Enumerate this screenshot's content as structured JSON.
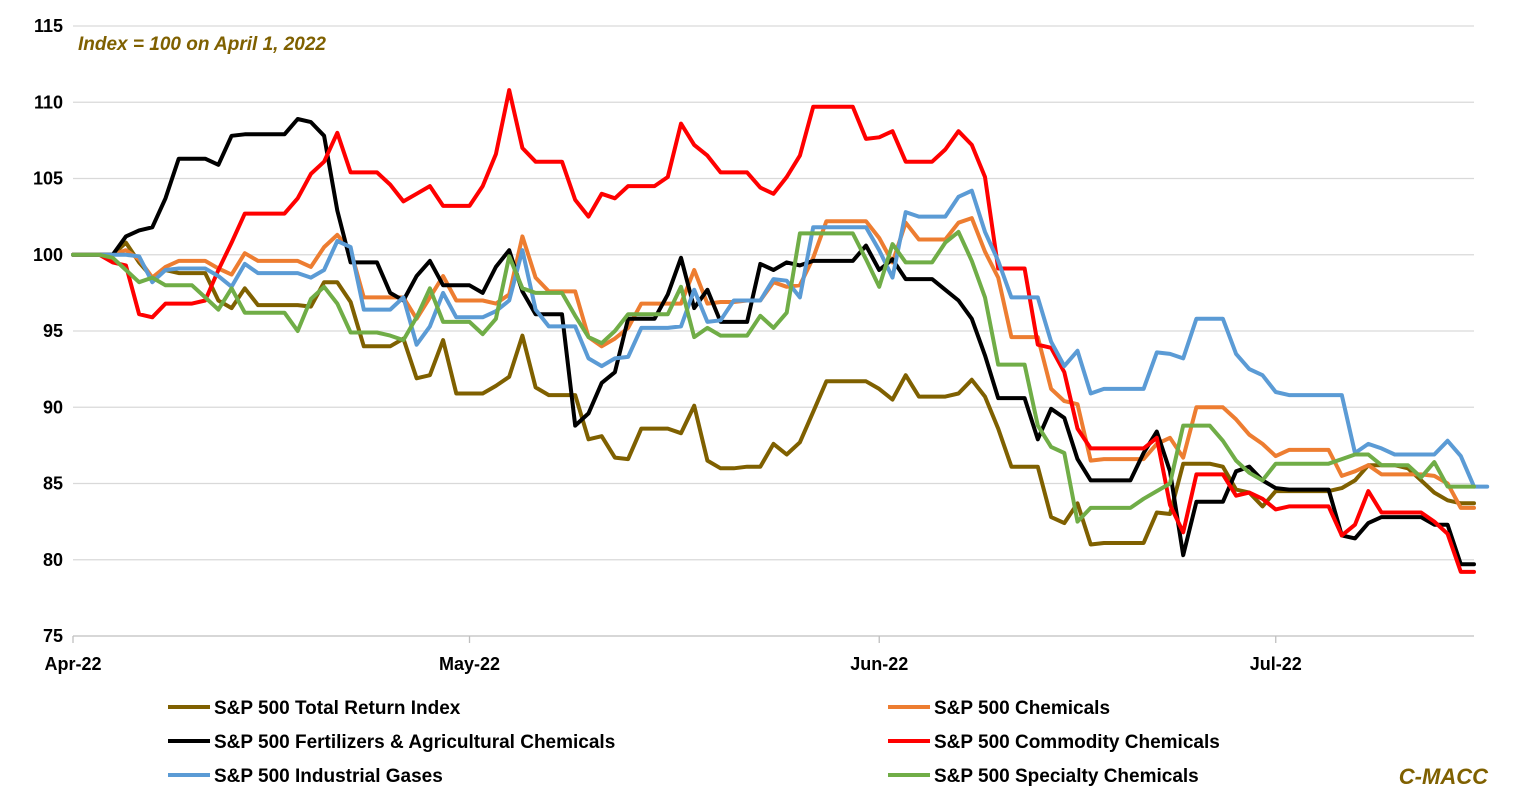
{
  "chart_data": {
    "type": "line",
    "annotation": "Index = 100 on April 1, 2022",
    "brand": "C-MACC",
    "ylim": [
      75,
      115
    ],
    "yticks": [
      75,
      80,
      85,
      90,
      95,
      100,
      105,
      110,
      115
    ],
    "xlim": [
      0,
      106
    ],
    "xticks": [
      {
        "label": "Apr-22",
        "x": 0
      },
      {
        "label": "May-22",
        "x": 30
      },
      {
        "label": "Jun-22",
        "x": 61
      },
      {
        "label": "Jul-22",
        "x": 91
      }
    ],
    "grid": true,
    "legend_position": "bottom",
    "series": [
      {
        "name": "S&P 500 Total Return Index",
        "color": "#7F6000",
        "values": [
          100,
          100,
          100,
          100,
          100.8,
          99.5,
          98.5,
          99,
          98.8,
          98.8,
          98.8,
          97,
          96.5,
          97.8,
          96.7,
          96.7,
          96.7,
          96.7,
          96.6,
          98.2,
          98.2,
          96.9,
          94,
          94,
          94,
          94.5,
          91.9,
          92.1,
          94.4,
          90.9,
          90.9,
          90.9,
          91.4,
          92,
          94.7,
          91.3,
          90.8,
          90.8,
          90.8,
          87.9,
          88.1,
          86.7,
          86.6,
          88.6,
          88.6,
          88.6,
          88.3,
          90.1,
          86.5,
          86,
          86,
          86.1,
          86.1,
          87.6,
          86.9,
          87.7,
          89.7,
          91.7,
          91.7,
          91.7,
          91.7,
          91.2,
          90.5,
          92.1,
          90.7,
          90.7,
          90.7,
          90.9,
          91.8,
          90.7,
          88.6,
          86.1,
          86.1,
          86.1,
          82.8,
          82.4,
          83.7,
          81,
          81.1,
          81.1,
          81.1,
          81.1,
          83.1,
          83,
          86.3,
          86.3,
          86.3,
          86.1,
          84.6,
          84.4,
          83.5,
          84.5,
          84.5,
          84.5,
          84.5,
          84.5,
          84.7,
          85.2,
          86.2,
          86.2,
          86.2,
          86,
          85.2,
          84.4,
          83.9,
          83.7,
          83.7
        ]
      },
      {
        "name": "S&P 500 Chemicals",
        "color": "#ED7D31",
        "values": [
          100,
          100,
          100,
          100,
          100.3,
          99.7,
          98.5,
          99.2,
          99.6,
          99.6,
          99.6,
          99.1,
          98.7,
          100.1,
          99.6,
          99.6,
          99.6,
          99.6,
          99.2,
          100.5,
          101.3,
          100.3,
          97.2,
          97.2,
          97.2,
          97.2,
          95.8,
          97.2,
          98.6,
          97,
          97,
          97,
          96.8,
          97.4,
          101.2,
          98.5,
          97.6,
          97.6,
          97.6,
          94.6,
          94,
          94.5,
          95.2,
          96.8,
          96.8,
          96.8,
          96.8,
          99,
          96.8,
          96.9,
          96.9,
          97,
          97,
          98.2,
          97.9,
          98,
          99.8,
          102.2,
          102.2,
          102.2,
          102.2,
          101.1,
          99.5,
          102.1,
          101,
          101,
          101,
          102.1,
          102.4,
          100.2,
          98.5,
          94.6,
          94.6,
          94.6,
          91.2,
          90.4,
          90.2,
          86.5,
          86.6,
          86.6,
          86.6,
          86.6,
          87.6,
          88,
          86.7,
          90,
          90,
          90,
          89.2,
          88.2,
          87.6,
          86.8,
          87.2,
          87.2,
          87.2,
          87.2,
          85.5,
          85.8,
          86.2,
          85.6,
          85.6,
          85.6,
          85.6,
          85.5,
          85,
          83.4,
          83.4
        ]
      },
      {
        "name": "S&P 500 Fertilizers & Agricultural Chemicals",
        "color": "#000000",
        "values": [
          100,
          100,
          100,
          100,
          101.2,
          101.6,
          101.8,
          103.7,
          106.3,
          106.3,
          106.3,
          105.9,
          107.8,
          107.9,
          107.9,
          107.9,
          107.9,
          108.9,
          108.7,
          107.8,
          102.9,
          99.5,
          99.5,
          99.5,
          97.5,
          97,
          98.6,
          99.6,
          98,
          98,
          98,
          97.5,
          99.2,
          100.3,
          97.6,
          96.1,
          96.1,
          96.1,
          88.8,
          89.6,
          91.6,
          92.3,
          95.8,
          95.8,
          95.8,
          97.4,
          99.8,
          96.5,
          97.7,
          95.6,
          95.6,
          95.6,
          99.4,
          99,
          99.5,
          99.3,
          99.6,
          99.6,
          99.6,
          99.6,
          100.6,
          99,
          99.7,
          98.4,
          98.4,
          98.4,
          97.7,
          97,
          95.8,
          93.4,
          90.6,
          90.6,
          90.6,
          87.9,
          89.9,
          89.3,
          86.6,
          85.2,
          85.2,
          85.2,
          85.2,
          87,
          88.4,
          85.8,
          80.3,
          83.8,
          83.8,
          83.8,
          85.8,
          86.1,
          85.2,
          84.7,
          84.6,
          84.6,
          84.6,
          84.6,
          81.6,
          81.4,
          82.4,
          82.8,
          82.8,
          82.8,
          82.8,
          82.3,
          82.3,
          79.7,
          79.7
        ]
      },
      {
        "name": "S&P 500 Commodity Chemicals",
        "color": "#FF0000",
        "values": [
          100,
          100,
          100,
          99.5,
          99.3,
          96.1,
          95.9,
          96.8,
          96.8,
          96.8,
          97,
          99,
          100.8,
          102.7,
          102.7,
          102.7,
          102.7,
          103.7,
          105.3,
          106.1,
          108,
          105.4,
          105.4,
          105.4,
          104.6,
          103.5,
          104,
          104.5,
          103.2,
          103.2,
          103.2,
          104.5,
          106.6,
          110.8,
          107,
          106.1,
          106.1,
          106.1,
          103.6,
          102.5,
          104,
          103.7,
          104.5,
          104.5,
          104.5,
          105.1,
          108.6,
          107.2,
          106.5,
          105.4,
          105.4,
          105.4,
          104.4,
          104,
          105.1,
          106.5,
          109.7,
          109.7,
          109.7,
          109.7,
          107.6,
          107.7,
          108.1,
          106.1,
          106.1,
          106.1,
          106.9,
          108.1,
          107.2,
          105.1,
          99.1,
          99.1,
          99.1,
          94.1,
          93.9,
          92.3,
          88.6,
          87.3,
          87.3,
          87.3,
          87.3,
          87.3,
          88,
          83.6,
          81.8,
          85.6,
          85.6,
          85.6,
          84.2,
          84.4,
          84,
          83.3,
          83.5,
          83.5,
          83.5,
          83.5,
          81.6,
          82.3,
          84.5,
          83.1,
          83.1,
          83.1,
          83.1,
          82.5,
          81.7,
          79.2,
          79.2
        ]
      },
      {
        "name": "S&P 500 Industrial Gases",
        "color": "#5B9BD5",
        "values": [
          100,
          100,
          100,
          100,
          100,
          99.9,
          98.2,
          99,
          99.1,
          99.1,
          99.1,
          98.6,
          97.9,
          99.4,
          98.8,
          98.8,
          98.8,
          98.8,
          98.5,
          99,
          100.9,
          100.5,
          96.4,
          96.4,
          96.4,
          97.2,
          94.1,
          95.3,
          97.5,
          95.9,
          95.9,
          95.9,
          96.3,
          97,
          100.3,
          96.4,
          95.3,
          95.3,
          95.3,
          93.2,
          92.7,
          93.2,
          93.3,
          95.2,
          95.2,
          95.2,
          95.3,
          97.7,
          95.6,
          95.7,
          97,
          97,
          97,
          98.4,
          98.3,
          97.2,
          101.8,
          101.8,
          101.8,
          101.8,
          101.8,
          100.3,
          98.5,
          102.8,
          102.5,
          102.5,
          102.5,
          103.8,
          104.2,
          101.5,
          99.6,
          97.2,
          97.2,
          97.2,
          94.3,
          92.7,
          93.7,
          90.9,
          91.2,
          91.2,
          91.2,
          91.2,
          93.6,
          93.5,
          93.2,
          95.8,
          95.8,
          95.8,
          93.5,
          92.5,
          92.1,
          91,
          90.8,
          90.8,
          90.8,
          90.8,
          90.8,
          87,
          87.6,
          87.3,
          86.9,
          86.9,
          86.9,
          86.9,
          87.8,
          86.8,
          84.8,
          84.8
        ]
      },
      {
        "name": "S&P 500 Specialty Chemicals",
        "color": "#70AD47",
        "values": [
          100,
          100,
          100,
          99.8,
          99,
          98.2,
          98.5,
          98,
          98,
          98,
          97.2,
          96.4,
          97.8,
          96.2,
          96.2,
          96.2,
          96.2,
          95,
          97.1,
          97.9,
          96.8,
          94.9,
          94.9,
          94.9,
          94.7,
          94.4,
          95.9,
          97.8,
          95.6,
          95.6,
          95.6,
          94.8,
          95.8,
          99.9,
          97.8,
          97.5,
          97.5,
          97.5,
          96,
          94.6,
          94.2,
          95,
          96.1,
          96.1,
          96.1,
          96.1,
          97.9,
          94.6,
          95.2,
          94.7,
          94.7,
          94.7,
          96,
          95.2,
          96.2,
          101.4,
          101.4,
          101.4,
          101.4,
          101.4,
          99.7,
          97.9,
          100.7,
          99.5,
          99.5,
          99.5,
          100.8,
          101.5,
          99.6,
          97.2,
          92.8,
          92.8,
          92.8,
          88.8,
          87.4,
          87,
          82.5,
          83.4,
          83.4,
          83.4,
          83.4,
          84,
          84.5,
          85,
          88.8,
          88.8,
          88.8,
          87.8,
          86.5,
          85.7,
          85.2,
          86.3,
          86.3,
          86.3,
          86.3,
          86.3,
          86.6,
          86.9,
          86.9,
          86.2,
          86.2,
          86.2,
          85.4,
          86.4,
          84.8,
          84.8,
          84.8
        ]
      }
    ]
  }
}
